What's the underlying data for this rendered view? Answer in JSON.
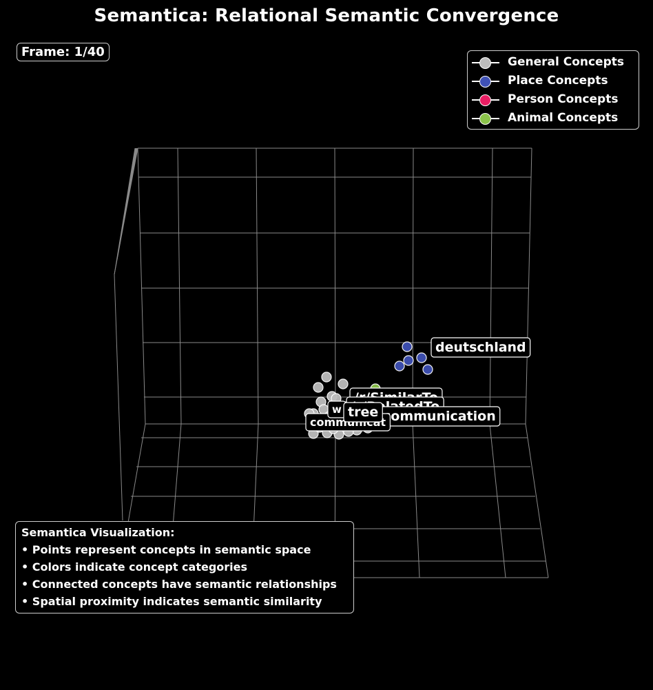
{
  "title": "Semantica: Relational Semantic Convergence",
  "frame_label": "Frame: 1/40",
  "legend": [
    {
      "label": "General Concepts",
      "color": "#bdbdbd"
    },
    {
      "label": "Place Concepts",
      "color": "#3f51b5"
    },
    {
      "label": "Person Concepts",
      "color": "#e91e63"
    },
    {
      "label": "Animal Concepts",
      "color": "#8bc34a"
    }
  ],
  "info_box": {
    "heading": "Semantica Visualization:",
    "lines": [
      "• Points represent concepts in semantic space",
      "• Colors indicate concept categories",
      "• Connected concepts have semantic relationships",
      "• Spatial proximity indicates semantic similarity"
    ]
  },
  "chart_data": {
    "type": "scatter",
    "dimensions": 3,
    "title": "Semantica: Relational Semantic Convergence",
    "grid": true,
    "legend_position": "top-right",
    "background": "#000000",
    "categories": [
      "General Concepts",
      "Place Concepts",
      "Person Concepts",
      "Animal Concepts"
    ],
    "point_labels": [
      {
        "text": "deutschland",
        "category": "Place Concepts"
      },
      {
        "text": "/r/SimilarTo",
        "category": "General Concepts"
      },
      {
        "text": "/r/RelatedTo",
        "category": "General Concepts"
      },
      {
        "text": "communication",
        "category": "General Concepts"
      },
      {
        "text": "tree",
        "category": "General Concepts"
      },
      {
        "text": "communicat",
        "category": "General Concepts"
      },
      {
        "text": "w",
        "category": "General Concepts"
      }
    ]
  }
}
